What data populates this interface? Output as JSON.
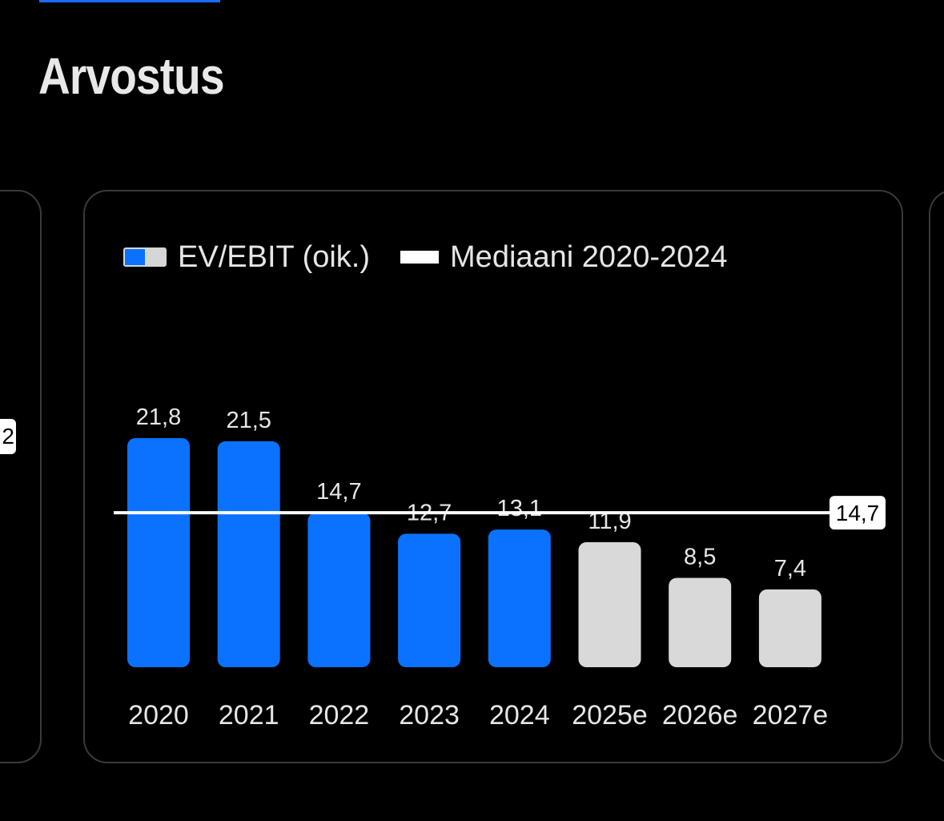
{
  "page": {
    "title": "Arvostus"
  },
  "prev_card": {
    "badge_fragment": "2"
  },
  "legend": {
    "bar_label": "EV/EBIT (oik.)",
    "line_label": "Mediaani 2020-2024"
  },
  "colors": {
    "actual": "#0a72ff",
    "estimate": "#d9d9d9",
    "median_line": "#ffffff",
    "background": "#000000"
  },
  "chart_data": {
    "type": "bar",
    "categories": [
      "2020",
      "2021",
      "2022",
      "2023",
      "2024",
      "2025e",
      "2026e",
      "2027e"
    ],
    "values": [
      21.8,
      21.5,
      14.7,
      12.7,
      13.1,
      11.9,
      8.5,
      7.4
    ],
    "value_labels": [
      "21,8",
      "21,5",
      "14,7",
      "12,7",
      "13,1",
      "11,9",
      "8,5",
      "7,4"
    ],
    "estimate": [
      false,
      false,
      false,
      false,
      false,
      true,
      true,
      true
    ],
    "series": [
      {
        "name": "EV/EBIT (oik.)",
        "values": [
          21.8,
          21.5,
          14.7,
          12.7,
          13.1,
          11.9,
          8.5,
          7.4
        ]
      }
    ],
    "reference_line": {
      "name": "Mediaani 2020-2024",
      "value": 14.7,
      "label": "14,7"
    },
    "title": "",
    "xlabel": "",
    "ylabel": "",
    "ylim": [
      0,
      22.5
    ],
    "grid": false,
    "legend_position": "top-left"
  }
}
